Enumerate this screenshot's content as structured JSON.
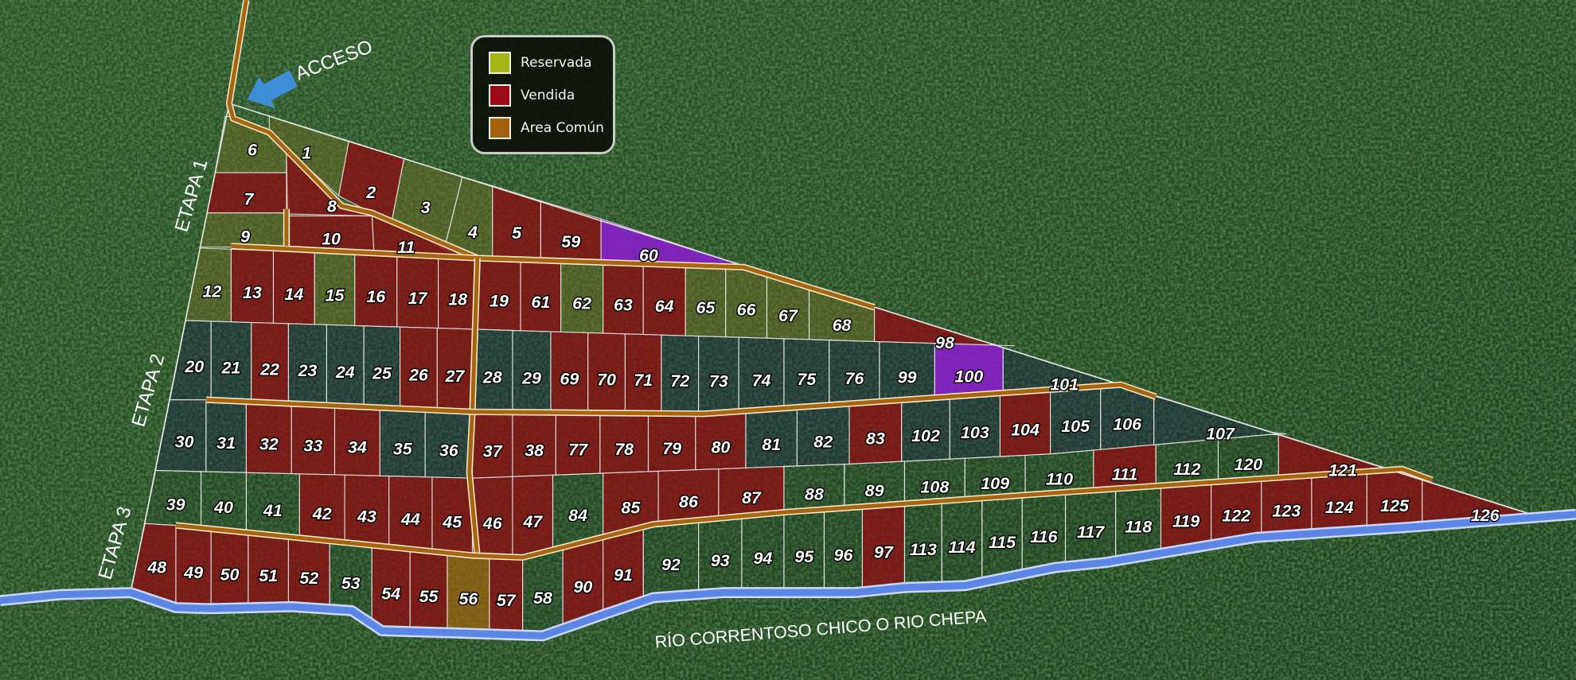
{
  "labels": {
    "access": "ACCESO",
    "stage1": "ETAPA 1",
    "stage2": "ETAPA 2",
    "stage3": "ETAPA 3",
    "river": "RÍO CORRENTOSO CHICO O RIO CHEPA"
  },
  "icons": {
    "access_arrow": "arrow-down-left-icon"
  },
  "legend": [
    {
      "label": "Reservada",
      "color": "#a3b614"
    },
    {
      "label": "Vendida",
      "color": "#9c0a14"
    },
    {
      "label": "Area Común",
      "color": "#a4620e"
    }
  ],
  "colors": {
    "sold": "#8c0b12",
    "special": "#8a1ccc",
    "common": "#a4620e",
    "road": "#a8650f",
    "river": "#5b86e6",
    "free_stage1": "#6e6a22",
    "free_stage2": "#1a2448",
    "free_stage3": "#1f3a22"
  },
  "lots": {
    "stage1_top": [
      {
        "n": "1",
        "s": "free1"
      },
      {
        "n": "2",
        "s": "sold"
      },
      {
        "n": "3",
        "s": "free1"
      },
      {
        "n": "4",
        "s": "free1"
      },
      {
        "n": "5",
        "s": "sold"
      },
      {
        "n": "59",
        "s": "sold"
      },
      {
        "n": "60",
        "s": "special"
      },
      {
        "n": "6",
        "s": "free1"
      },
      {
        "n": "7",
        "s": "sold"
      },
      {
        "n": "8",
        "s": "sold"
      },
      {
        "n": "9",
        "s": "free1"
      },
      {
        "n": "10",
        "s": "sold"
      },
      {
        "n": "11",
        "s": "sold"
      }
    ],
    "rowB": [
      {
        "n": "12",
        "s": "free1"
      },
      {
        "n": "13",
        "s": "sold"
      },
      {
        "n": "14",
        "s": "sold"
      },
      {
        "n": "15",
        "s": "free1"
      },
      {
        "n": "16",
        "s": "sold"
      },
      {
        "n": "17",
        "s": "sold"
      },
      {
        "n": "18",
        "s": "sold"
      },
      {
        "n": "19",
        "s": "sold"
      },
      {
        "n": "61",
        "s": "sold"
      },
      {
        "n": "62",
        "s": "free1"
      },
      {
        "n": "63",
        "s": "sold"
      },
      {
        "n": "64",
        "s": "sold"
      },
      {
        "n": "65",
        "s": "free1"
      },
      {
        "n": "66",
        "s": "free1"
      },
      {
        "n": "67",
        "s": "free1"
      },
      {
        "n": "68",
        "s": "free1"
      },
      {
        "n": "98",
        "s": "sold"
      }
    ],
    "rowC": [
      {
        "n": "20",
        "s": "free2"
      },
      {
        "n": "21",
        "s": "free2"
      },
      {
        "n": "22",
        "s": "sold"
      },
      {
        "n": "23",
        "s": "free2"
      },
      {
        "n": "24",
        "s": "free2"
      },
      {
        "n": "25",
        "s": "free2"
      },
      {
        "n": "26",
        "s": "sold"
      },
      {
        "n": "27",
        "s": "sold"
      },
      {
        "n": "28",
        "s": "free2"
      },
      {
        "n": "29",
        "s": "free2"
      },
      {
        "n": "69",
        "s": "sold"
      },
      {
        "n": "70",
        "s": "sold"
      },
      {
        "n": "71",
        "s": "sold"
      },
      {
        "n": "72",
        "s": "free2"
      },
      {
        "n": "73",
        "s": "free2"
      },
      {
        "n": "74",
        "s": "free2"
      },
      {
        "n": "75",
        "s": "free2"
      },
      {
        "n": "76",
        "s": "free2"
      },
      {
        "n": "99",
        "s": "free2"
      },
      {
        "n": "100",
        "s": "special"
      },
      {
        "n": "101",
        "s": "free2"
      }
    ],
    "rowD": [
      {
        "n": "30",
        "s": "free2"
      },
      {
        "n": "31",
        "s": "free2"
      },
      {
        "n": "32",
        "s": "sold"
      },
      {
        "n": "33",
        "s": "sold"
      },
      {
        "n": "34",
        "s": "sold"
      },
      {
        "n": "35",
        "s": "free2"
      },
      {
        "n": "36",
        "s": "free2"
      },
      {
        "n": "37",
        "s": "sold"
      },
      {
        "n": "38",
        "s": "sold"
      },
      {
        "n": "77",
        "s": "sold"
      },
      {
        "n": "78",
        "s": "sold"
      },
      {
        "n": "79",
        "s": "sold"
      },
      {
        "n": "80",
        "s": "sold"
      },
      {
        "n": "81",
        "s": "free2"
      },
      {
        "n": "82",
        "s": "free2"
      },
      {
        "n": "83",
        "s": "sold"
      },
      {
        "n": "102",
        "s": "free2"
      },
      {
        "n": "103",
        "s": "free2"
      },
      {
        "n": "104",
        "s": "sold"
      },
      {
        "n": "105",
        "s": "free2"
      },
      {
        "n": "106",
        "s": "free2"
      },
      {
        "n": "107",
        "s": "free2"
      }
    ],
    "rowE": [
      {
        "n": "39",
        "s": "free3"
      },
      {
        "n": "40",
        "s": "free3"
      },
      {
        "n": "41",
        "s": "free3"
      },
      {
        "n": "42",
        "s": "sold"
      },
      {
        "n": "43",
        "s": "sold"
      },
      {
        "n": "44",
        "s": "sold"
      },
      {
        "n": "45",
        "s": "sold"
      },
      {
        "n": "46",
        "s": "sold"
      },
      {
        "n": "47",
        "s": "sold"
      },
      {
        "n": "84",
        "s": "free3"
      },
      {
        "n": "85",
        "s": "sold"
      },
      {
        "n": "86",
        "s": "sold"
      },
      {
        "n": "87",
        "s": "sold"
      },
      {
        "n": "88",
        "s": "free3"
      },
      {
        "n": "89",
        "s": "free3"
      },
      {
        "n": "108",
        "s": "free3"
      },
      {
        "n": "109",
        "s": "free3"
      },
      {
        "n": "110",
        "s": "free3"
      },
      {
        "n": "111",
        "s": "sold"
      },
      {
        "n": "112",
        "s": "free3"
      },
      {
        "n": "120",
        "s": "free3"
      },
      {
        "n": "121",
        "s": "sold"
      }
    ],
    "rowF": [
      {
        "n": "48",
        "s": "sold"
      },
      {
        "n": "49",
        "s": "sold"
      },
      {
        "n": "50",
        "s": "sold"
      },
      {
        "n": "51",
        "s": "sold"
      },
      {
        "n": "52",
        "s": "sold"
      },
      {
        "n": "53",
        "s": "free3"
      },
      {
        "n": "54",
        "s": "sold"
      },
      {
        "n": "55",
        "s": "sold"
      },
      {
        "n": "56",
        "s": "common"
      },
      {
        "n": "57",
        "s": "sold"
      },
      {
        "n": "58",
        "s": "free3"
      },
      {
        "n": "90",
        "s": "sold"
      },
      {
        "n": "91",
        "s": "sold"
      },
      {
        "n": "92",
        "s": "free3"
      },
      {
        "n": "93",
        "s": "free3"
      },
      {
        "n": "94",
        "s": "free3"
      },
      {
        "n": "95",
        "s": "free3"
      },
      {
        "n": "96",
        "s": "free3"
      },
      {
        "n": "97",
        "s": "sold"
      },
      {
        "n": "113",
        "s": "free3"
      },
      {
        "n": "114",
        "s": "free3"
      },
      {
        "n": "115",
        "s": "free3"
      },
      {
        "n": "116",
        "s": "free3"
      },
      {
        "n": "117",
        "s": "free3"
      },
      {
        "n": "118",
        "s": "free3"
      },
      {
        "n": "119",
        "s": "sold"
      },
      {
        "n": "122",
        "s": "sold"
      },
      {
        "n": "123",
        "s": "sold"
      },
      {
        "n": "124",
        "s": "sold"
      },
      {
        "n": "125",
        "s": "sold"
      },
      {
        "n": "126",
        "s": "sold"
      }
    ]
  }
}
